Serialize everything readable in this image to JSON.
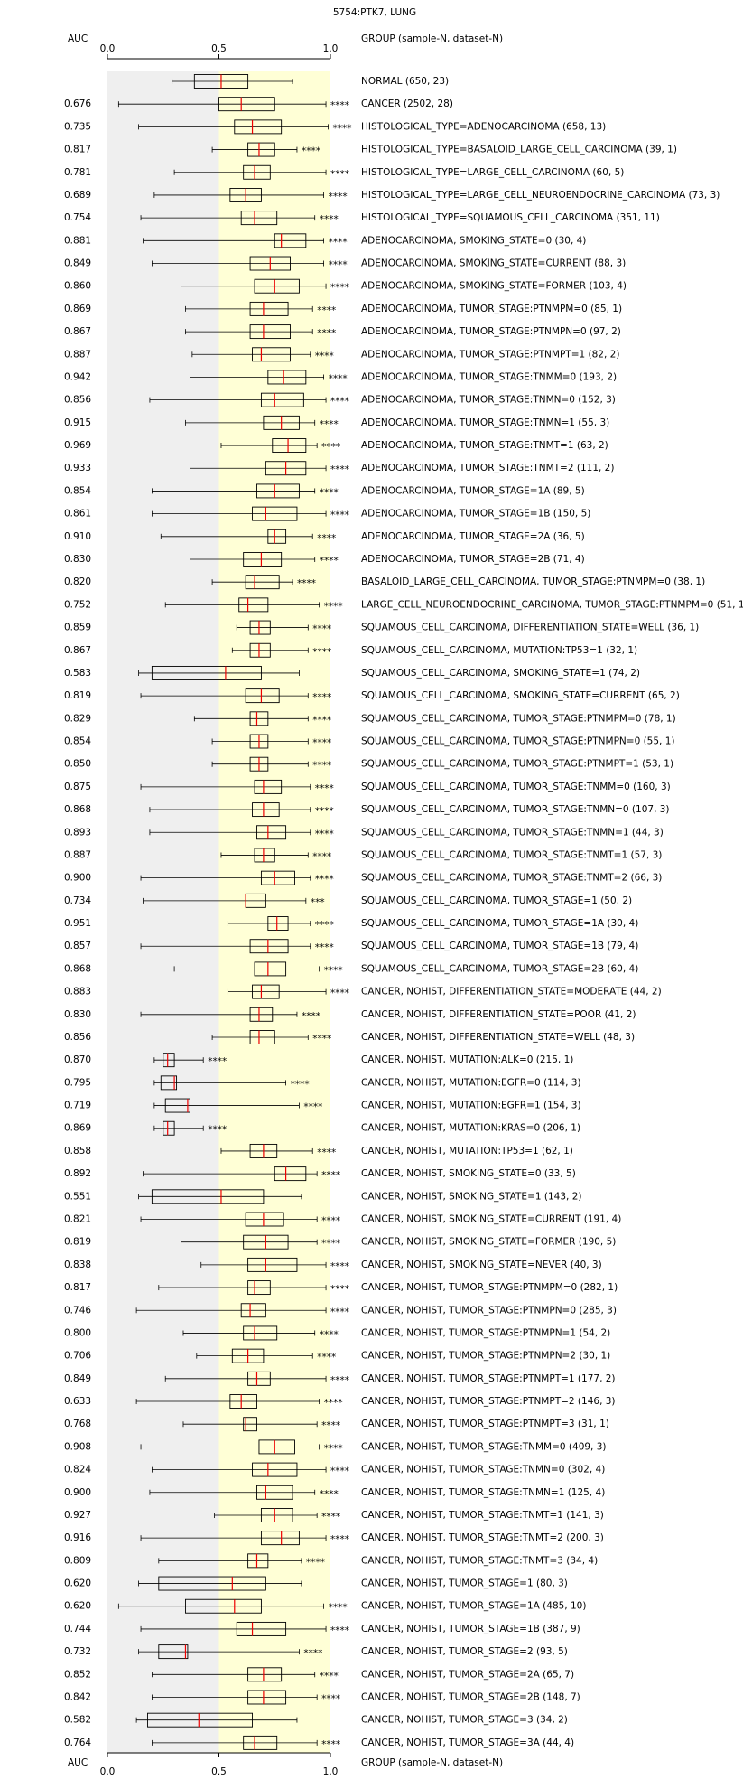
{
  "chart_data": {
    "type": "boxplot",
    "title": "5754:PTK7, LUNG",
    "auc_header": "AUC",
    "group_header": "GROUP (sample-N, dataset-N)",
    "xlim": [
      0,
      1
    ],
    "xticks": [
      {
        "value": 0,
        "label": "0.0"
      },
      {
        "value": 0.5,
        "label": "0.5"
      },
      {
        "value": 1,
        "label": "1.0"
      }
    ],
    "categories": [
      "NORMAL (650, 23)",
      "CANCER (2502, 28)",
      "HISTOLOGICAL_TYPE=ADENOCARCINOMA (658, 13)",
      "HISTOLOGICAL_TYPE=BASALOID_LARGE_CELL_CARCINOMA (39, 1)",
      "HISTOLOGICAL_TYPE=LARGE_CELL_CARCINOMA (60, 5)",
      "HISTOLOGICAL_TYPE=LARGE_CELL_NEUROENDOCRINE_CARCINOMA (73, 3)",
      "HISTOLOGICAL_TYPE=SQUAMOUS_CELL_CARCINOMA (351, 11)",
      "ADENOCARCINOMA, SMOKING_STATE=0 (30, 4)",
      "ADENOCARCINOMA, SMOKING_STATE=CURRENT (88, 3)",
      "ADENOCARCINOMA, SMOKING_STATE=FORMER (103, 4)",
      "ADENOCARCINOMA, TUMOR_STAGE:PTNMPM=0 (85, 1)",
      "ADENOCARCINOMA, TUMOR_STAGE:PTNMPN=0 (97, 2)",
      "ADENOCARCINOMA, TUMOR_STAGE:PTNMPT=1 (82, 2)",
      "ADENOCARCINOMA, TUMOR_STAGE:TNMM=0 (193, 2)",
      "ADENOCARCINOMA, TUMOR_STAGE:TNMN=0 (152, 3)",
      "ADENOCARCINOMA, TUMOR_STAGE:TNMN=1 (55, 3)",
      "ADENOCARCINOMA, TUMOR_STAGE:TNMT=1 (63, 2)",
      "ADENOCARCINOMA, TUMOR_STAGE:TNMT=2 (111, 2)",
      "ADENOCARCINOMA, TUMOR_STAGE=1A (89, 5)",
      "ADENOCARCINOMA, TUMOR_STAGE=1B (150, 5)",
      "ADENOCARCINOMA, TUMOR_STAGE=2A (36, 5)",
      "ADENOCARCINOMA, TUMOR_STAGE=2B (71, 4)",
      "BASALOID_LARGE_CELL_CARCINOMA, TUMOR_STAGE:PTNMPM=0 (38, 1)",
      "LARGE_CELL_NEUROENDOCRINE_CARCINOMA, TUMOR_STAGE:PTNMPM=0 (51, 1)",
      "SQUAMOUS_CELL_CARCINOMA, DIFFERENTIATION_STATE=WELL (36, 1)",
      "SQUAMOUS_CELL_CARCINOMA, MUTATION:TP53=1 (32, 1)",
      "SQUAMOUS_CELL_CARCINOMA, SMOKING_STATE=1 (74, 2)",
      "SQUAMOUS_CELL_CARCINOMA, SMOKING_STATE=CURRENT (65, 2)",
      "SQUAMOUS_CELL_CARCINOMA, TUMOR_STAGE:PTNMPM=0 (78, 1)",
      "SQUAMOUS_CELL_CARCINOMA, TUMOR_STAGE:PTNMPN=0 (55, 1)",
      "SQUAMOUS_CELL_CARCINOMA, TUMOR_STAGE:PTNMPT=1 (53, 1)",
      "SQUAMOUS_CELL_CARCINOMA, TUMOR_STAGE:TNMM=0 (160, 3)",
      "SQUAMOUS_CELL_CARCINOMA, TUMOR_STAGE:TNMN=0 (107, 3)",
      "SQUAMOUS_CELL_CARCINOMA, TUMOR_STAGE:TNMN=1 (44, 3)",
      "SQUAMOUS_CELL_CARCINOMA, TUMOR_STAGE:TNMT=1 (57, 3)",
      "SQUAMOUS_CELL_CARCINOMA, TUMOR_STAGE:TNMT=2 (66, 3)",
      "SQUAMOUS_CELL_CARCINOMA, TUMOR_STAGE=1 (50, 2)",
      "SQUAMOUS_CELL_CARCINOMA, TUMOR_STAGE=1A (30, 4)",
      "SQUAMOUS_CELL_CARCINOMA, TUMOR_STAGE=1B (79, 4)",
      "SQUAMOUS_CELL_CARCINOMA, TUMOR_STAGE=2B (60, 4)",
      "CANCER, NOHIST, DIFFERENTIATION_STATE=MODERATE (44, 2)",
      "CANCER, NOHIST, DIFFERENTIATION_STATE=POOR (41, 2)",
      "CANCER, NOHIST, DIFFERENTIATION_STATE=WELL (48, 3)",
      "CANCER, NOHIST, MUTATION:ALK=0 (215, 1)",
      "CANCER, NOHIST, MUTATION:EGFR=0 (114, 3)",
      "CANCER, NOHIST, MUTATION:EGFR=1 (154, 3)",
      "CANCER, NOHIST, MUTATION:KRAS=0 (206, 1)",
      "CANCER, NOHIST, MUTATION:TP53=1 (62, 1)",
      "CANCER, NOHIST, SMOKING_STATE=0 (33, 5)",
      "CANCER, NOHIST, SMOKING_STATE=1 (143, 2)",
      "CANCER, NOHIST, SMOKING_STATE=CURRENT (191, 4)",
      "CANCER, NOHIST, SMOKING_STATE=FORMER (190, 5)",
      "CANCER, NOHIST, SMOKING_STATE=NEVER (40, 3)",
      "CANCER, NOHIST, TUMOR_STAGE:PTNMPM=0 (282, 1)",
      "CANCER, NOHIST, TUMOR_STAGE:PTNMPN=0 (285, 3)",
      "CANCER, NOHIST, TUMOR_STAGE:PTNMPN=1 (54, 2)",
      "CANCER, NOHIST, TUMOR_STAGE:PTNMPN=2 (30, 1)",
      "CANCER, NOHIST, TUMOR_STAGE:PTNMPT=1 (177, 2)",
      "CANCER, NOHIST, TUMOR_STAGE:PTNMPT=2 (146, 3)",
      "CANCER, NOHIST, TUMOR_STAGE:PTNMPT=3 (31, 1)",
      "CANCER, NOHIST, TUMOR_STAGE:TNMM=0 (409, 3)",
      "CANCER, NOHIST, TUMOR_STAGE:TNMN=0 (302, 4)",
      "CANCER, NOHIST, TUMOR_STAGE:TNMN=1 (125, 4)",
      "CANCER, NOHIST, TUMOR_STAGE:TNMT=1 (141, 3)",
      "CANCER, NOHIST, TUMOR_STAGE:TNMT=2 (200, 3)",
      "CANCER, NOHIST, TUMOR_STAGE:TNMT=3 (34, 4)",
      "CANCER, NOHIST, TUMOR_STAGE=1 (80, 3)",
      "CANCER, NOHIST, TUMOR_STAGE=1A (485, 10)",
      "CANCER, NOHIST, TUMOR_STAGE=1B (387, 9)",
      "CANCER, NOHIST, TUMOR_STAGE=2 (93, 5)",
      "CANCER, NOHIST, TUMOR_STAGE=2A (65, 7)",
      "CANCER, NOHIST, TUMOR_STAGE=2B (148, 7)",
      "CANCER, NOHIST, TUMOR_STAGE=3 (34, 2)",
      "CANCER, NOHIST, TUMOR_STAGE=3A (44, 4)"
    ],
    "auc": [
      null,
      "0.676",
      "0.735",
      "0.817",
      "0.781",
      "0.689",
      "0.754",
      "0.881",
      "0.849",
      "0.860",
      "0.869",
      "0.867",
      "0.887",
      "0.942",
      "0.856",
      "0.915",
      "0.969",
      "0.933",
      "0.854",
      "0.861",
      "0.910",
      "0.830",
      "0.820",
      "0.752",
      "0.859",
      "0.867",
      "0.583",
      "0.819",
      "0.829",
      "0.854",
      "0.850",
      "0.875",
      "0.868",
      "0.893",
      "0.887",
      "0.900",
      "0.734",
      "0.951",
      "0.857",
      "0.868",
      "0.883",
      "0.830",
      "0.856",
      "0.870",
      "0.795",
      "0.719",
      "0.869",
      "0.858",
      "0.892",
      "0.551",
      "0.821",
      "0.819",
      "0.838",
      "0.817",
      "0.746",
      "0.800",
      "0.706",
      "0.849",
      "0.633",
      "0.768",
      "0.908",
      "0.824",
      "0.900",
      "0.927",
      "0.916",
      "0.809",
      "0.620",
      "0.620",
      "0.744",
      "0.732",
      "0.852",
      "0.842",
      "0.582",
      "0.764"
    ],
    "stars": [
      null,
      "****",
      "****",
      "****",
      "****",
      "****",
      "****",
      "****",
      "****",
      "****",
      "****",
      "****",
      "****",
      "****",
      "****",
      "****",
      "****",
      "****",
      "****",
      "****",
      "****",
      "****",
      "****",
      "****",
      "****",
      "****",
      null,
      "****",
      "****",
      "****",
      "****",
      "****",
      "****",
      "****",
      "****",
      "****",
      "***",
      "****",
      "****",
      "****",
      "****",
      "****",
      "****",
      "****",
      "****",
      "****",
      "****",
      "****",
      "****",
      null,
      "****",
      "****",
      "****",
      "****",
      "****",
      "****",
      "****",
      "****",
      "****",
      "****",
      "****",
      "****",
      "****",
      "****",
      "****",
      "****",
      null,
      "****",
      "****",
      "****",
      "****",
      "****",
      null,
      "****"
    ],
    "label_colors": [
      "#000000",
      "#ee0000",
      "#ee0000",
      "#ee0000",
      "#ee0000",
      "#ee0000",
      "#ee0000",
      "#ee0000",
      "#ee0000",
      "#ee0000",
      "#ee0000",
      "#ee0000",
      "#ee0000",
      "#ee0000",
      "#ee0000",
      "#ee0000",
      "#ee0000",
      "#ee0000",
      "#ee0000",
      "#ee0000",
      "#ee0000",
      "#ee0000",
      "#ee0000",
      "#ee0000",
      "#ee0000",
      "#ee0000",
      "#000000",
      "#ee0000",
      "#ee0000",
      "#ee0000",
      "#ee0000",
      "#ee0000",
      "#ee0000",
      "#ee0000",
      "#ee0000",
      "#ee0000",
      "#ee0000",
      "#ee0000",
      "#ee0000",
      "#ee0000",
      "#ee0000",
      "#ee0000",
      "#ee0000",
      "#0000ee",
      "#0000ee",
      "#0000ee",
      "#0000ee",
      "#ee0000",
      "#ee0000",
      "#000000",
      "#ee0000",
      "#ee0000",
      "#ee0000",
      "#ee0000",
      "#ee0000",
      "#ee0000",
      "#ee0000",
      "#ee0000",
      "#ee0000",
      "#ee0000",
      "#ee0000",
      "#ee0000",
      "#ee0000",
      "#ee0000",
      "#ee0000",
      "#ee0000",
      "#000000",
      "#ee0000",
      "#ee0000",
      "#0000ee",
      "#ee0000",
      "#ee0000",
      "#000000",
      "#ee0000"
    ],
    "min": [
      0.29,
      0.05,
      0.14,
      0.47,
      0.3,
      0.21,
      0.15,
      0.16,
      0.2,
      0.33,
      0.35,
      0.35,
      0.38,
      0.37,
      0.19,
      0.35,
      0.51,
      0.37,
      0.2,
      0.2,
      0.24,
      0.37,
      0.47,
      0.26,
      0.58,
      0.56,
      0.14,
      0.15,
      0.39,
      0.47,
      0.47,
      0.15,
      0.19,
      0.19,
      0.51,
      0.15,
      0.16,
      0.54,
      0.15,
      0.3,
      0.54,
      0.15,
      0.47,
      0.21,
      0.21,
      0.21,
      0.21,
      0.51,
      0.16,
      0.14,
      0.15,
      0.33,
      0.42,
      0.23,
      0.13,
      0.34,
      0.4,
      0.26,
      0.13,
      0.34,
      0.15,
      0.2,
      0.19,
      0.48,
      0.15,
      0.23,
      0.14,
      0.05,
      0.15,
      0.14,
      0.2,
      0.2,
      0.13,
      0.2
    ],
    "q1": [
      0.39,
      0.5,
      0.57,
      0.63,
      0.61,
      0.55,
      0.6,
      0.75,
      0.64,
      0.66,
      0.64,
      0.64,
      0.65,
      0.72,
      0.69,
      0.7,
      0.74,
      0.71,
      0.67,
      0.65,
      0.72,
      0.61,
      0.62,
      0.59,
      0.64,
      0.64,
      0.2,
      0.62,
      0.64,
      0.64,
      0.64,
      0.66,
      0.65,
      0.67,
      0.66,
      0.69,
      0.62,
      0.72,
      0.64,
      0.66,
      0.65,
      0.64,
      0.64,
      0.25,
      0.24,
      0.26,
      0.25,
      0.64,
      0.75,
      0.2,
      0.62,
      0.61,
      0.63,
      0.63,
      0.6,
      0.61,
      0.56,
      0.63,
      0.55,
      0.61,
      0.68,
      0.65,
      0.67,
      0.69,
      0.69,
      0.63,
      0.23,
      0.35,
      0.58,
      0.23,
      0.63,
      0.63,
      0.18,
      0.61
    ],
    "median": [
      0.51,
      0.6,
      0.65,
      0.68,
      0.66,
      0.62,
      0.66,
      0.78,
      0.73,
      0.75,
      0.7,
      0.7,
      0.69,
      0.79,
      0.75,
      0.78,
      0.81,
      0.8,
      0.75,
      0.71,
      0.75,
      0.69,
      0.66,
      0.63,
      0.68,
      0.68,
      0.53,
      0.69,
      0.67,
      0.68,
      0.68,
      0.7,
      0.7,
      0.72,
      0.7,
      0.75,
      0.62,
      0.76,
      0.72,
      0.72,
      0.69,
      0.68,
      0.68,
      0.27,
      0.3,
      0.36,
      0.27,
      0.7,
      0.8,
      0.51,
      0.7,
      0.71,
      0.71,
      0.66,
      0.64,
      0.66,
      0.63,
      0.67,
      0.6,
      0.62,
      0.75,
      0.72,
      0.71,
      0.75,
      0.78,
      0.67,
      0.56,
      0.57,
      0.65,
      0.35,
      0.7,
      0.7,
      0.41,
      0.66
    ],
    "q3": [
      0.63,
      0.75,
      0.78,
      0.75,
      0.73,
      0.69,
      0.76,
      0.89,
      0.82,
      0.86,
      0.81,
      0.82,
      0.82,
      0.89,
      0.88,
      0.86,
      0.89,
      0.89,
      0.86,
      0.85,
      0.8,
      0.78,
      0.77,
      0.72,
      0.73,
      0.73,
      0.69,
      0.77,
      0.72,
      0.72,
      0.72,
      0.78,
      0.77,
      0.8,
      0.75,
      0.84,
      0.71,
      0.81,
      0.81,
      0.8,
      0.77,
      0.74,
      0.75,
      0.3,
      0.31,
      0.37,
      0.3,
      0.76,
      0.89,
      0.7,
      0.79,
      0.81,
      0.85,
      0.73,
      0.71,
      0.76,
      0.7,
      0.73,
      0.67,
      0.67,
      0.84,
      0.85,
      0.83,
      0.83,
      0.86,
      0.72,
      0.71,
      0.69,
      0.8,
      0.36,
      0.78,
      0.8,
      0.65,
      0.76
    ],
    "max": [
      0.83,
      0.98,
      0.99,
      0.85,
      0.98,
      0.97,
      0.93,
      0.97,
      0.97,
      0.98,
      0.92,
      0.92,
      0.91,
      0.97,
      0.98,
      0.93,
      0.94,
      0.98,
      0.93,
      0.98,
      0.92,
      0.93,
      0.83,
      0.95,
      0.9,
      0.9,
      0.86,
      0.9,
      0.9,
      0.9,
      0.9,
      0.91,
      0.91,
      0.91,
      0.9,
      0.91,
      0.89,
      0.91,
      0.91,
      0.95,
      0.98,
      0.85,
      0.9,
      0.43,
      0.8,
      0.86,
      0.43,
      0.92,
      0.94,
      0.87,
      0.94,
      0.94,
      0.98,
      0.98,
      0.98,
      0.93,
      0.92,
      0.98,
      0.95,
      0.94,
      0.95,
      0.98,
      0.93,
      0.94,
      0.98,
      0.87,
      0.87,
      0.97,
      0.98,
      0.86,
      0.93,
      0.94,
      0.85,
      0.94
    ],
    "background_colors": [
      "#efefef",
      "#ffffd6"
    ],
    "median_color": "#ee0000"
  }
}
